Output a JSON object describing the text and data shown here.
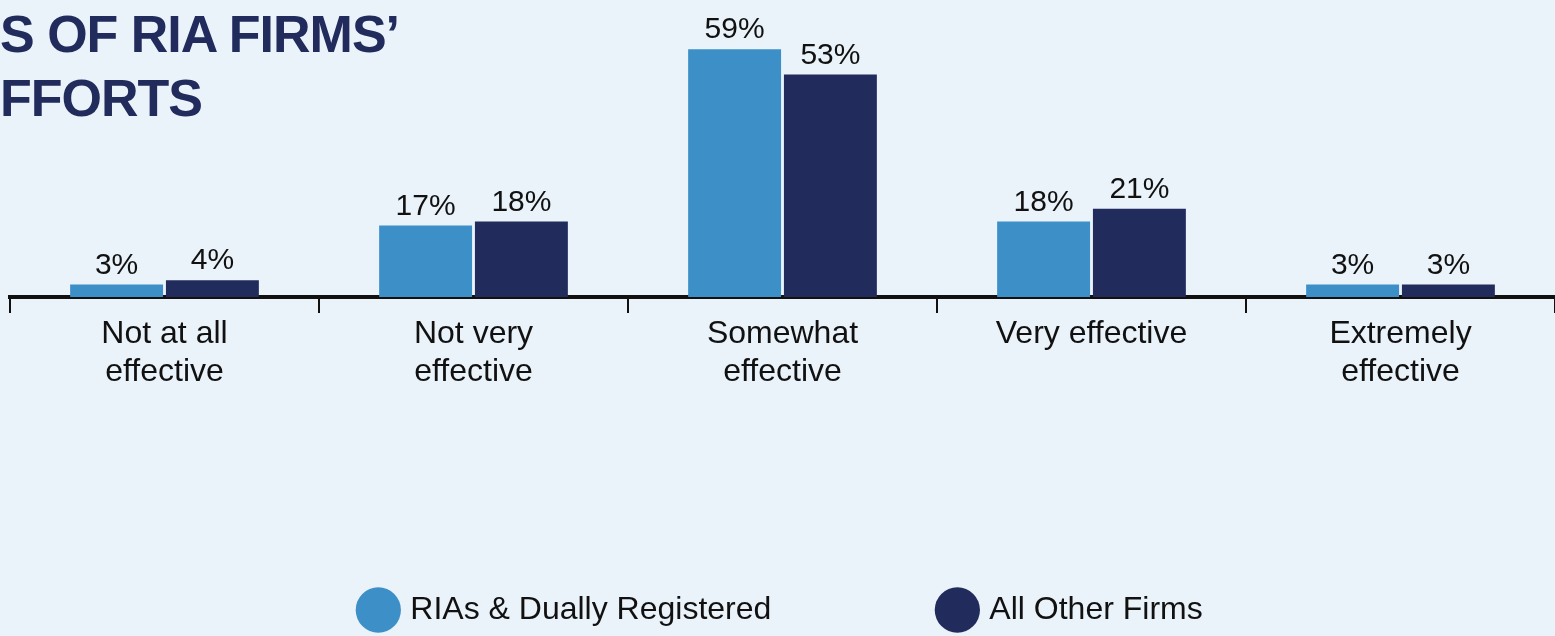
{
  "chart_data": {
    "type": "bar",
    "title": "S OF RIA FIRMS’\nFFORTS",
    "categories": [
      "Not at all effective",
      "Not very effective",
      "Somewhat effective",
      "Very effective",
      "Extremely effective"
    ],
    "series": [
      {
        "name": "RIAs & Dually Registered",
        "color": "#3d8fc7",
        "values": [
          3,
          17,
          59,
          18,
          3
        ],
        "value_labels": [
          "3%",
          "17%",
          "59%",
          "18%",
          "3%"
        ]
      },
      {
        "name": "All Other Firms",
        "color": "#212b5c",
        "values": [
          4,
          18,
          53,
          21,
          3
        ],
        "value_labels": [
          "4%",
          "18%",
          "53%",
          "21%",
          "3%"
        ]
      }
    ],
    "legend": "bottom",
    "grid": false,
    "tick_labels": "x"
  }
}
